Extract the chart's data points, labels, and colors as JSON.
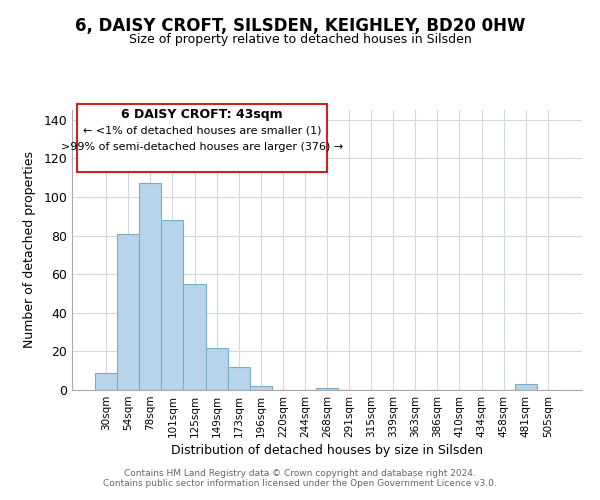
{
  "title": "6, DAISY CROFT, SILSDEN, KEIGHLEY, BD20 0HW",
  "subtitle": "Size of property relative to detached houses in Silsden",
  "xlabel": "Distribution of detached houses by size in Silsden",
  "ylabel": "Number of detached properties",
  "bar_color": "#b8d4e8",
  "bar_edge_color": "#7aaec8",
  "categories": [
    "30sqm",
    "54sqm",
    "78sqm",
    "101sqm",
    "125sqm",
    "149sqm",
    "173sqm",
    "196sqm",
    "220sqm",
    "244sqm",
    "268sqm",
    "291sqm",
    "315sqm",
    "339sqm",
    "363sqm",
    "386sqm",
    "410sqm",
    "434sqm",
    "458sqm",
    "481sqm",
    "505sqm"
  ],
  "values": [
    9,
    81,
    107,
    88,
    55,
    22,
    12,
    2,
    0,
    0,
    1,
    0,
    0,
    0,
    0,
    0,
    0,
    0,
    0,
    3,
    0
  ],
  "ylim": [
    0,
    145
  ],
  "yticks": [
    0,
    20,
    40,
    60,
    80,
    100,
    120,
    140
  ],
  "annotation_title": "6 DAISY CROFT: 43sqm",
  "annotation_line1": "← <1% of detached houses are smaller (1)",
  "annotation_line2": ">99% of semi-detached houses are larger (376) →",
  "footer1": "Contains HM Land Registry data © Crown copyright and database right 2024.",
  "footer2": "Contains public sector information licensed under the Open Government Licence v3.0.",
  "background_color": "#ffffff",
  "grid_color": "#d0d8e0"
}
